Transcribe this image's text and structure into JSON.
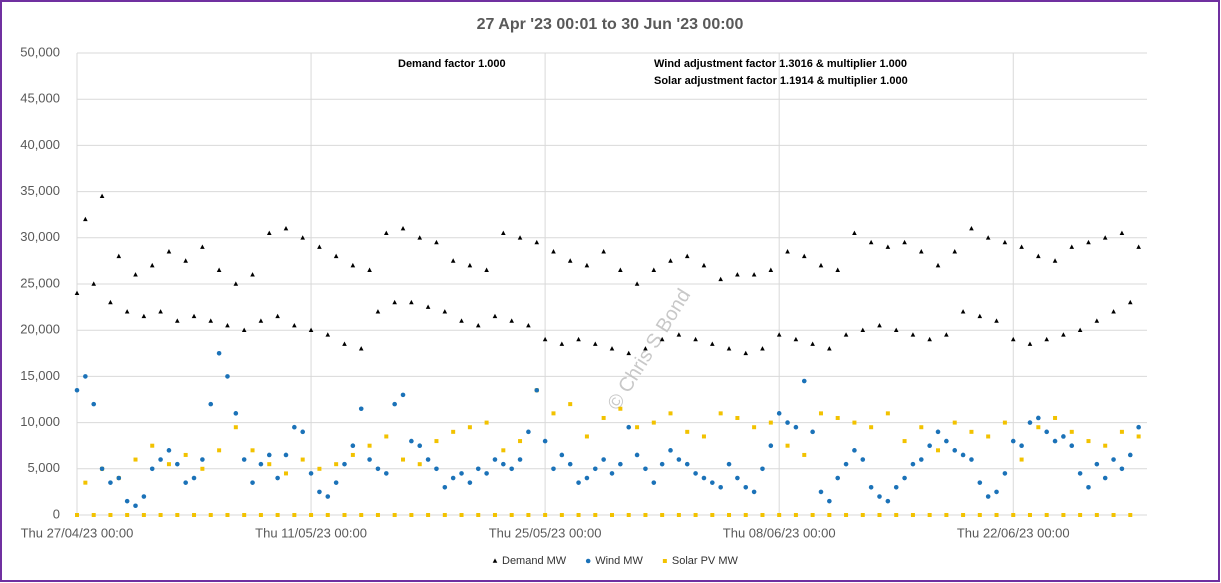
{
  "chart_data": {
    "type": "scatter",
    "title": "27 Apr '23 00:01 to 30 Jun '23 00:00",
    "annotations": [
      "Demand factor 1.000",
      "Wind adjustment factor 1.3016 & multiplier 1.000",
      "Solar adjustment factor 1.1914 & multiplier 1.000",
      "© Chris S Bond"
    ],
    "xlim": [
      0,
      64
    ],
    "xticks": [
      {
        "value": 0,
        "label": "Thu 27/04/23 00:00"
      },
      {
        "value": 14,
        "label": "Thu 11/05/23 00:00"
      },
      {
        "value": 28,
        "label": "Thu 25/05/23 00:00"
      },
      {
        "value": 42,
        "label": "Thu 08/06/23 00:00"
      },
      {
        "value": 56,
        "label": "Thu 22/06/23 00:00"
      }
    ],
    "ylim": [
      0,
      50000
    ],
    "yticks": [
      0,
      {
        "value": 5000,
        "label": "5,000"
      },
      {
        "value": 10000,
        "label": "10,000"
      },
      {
        "value": 15000,
        "label": "15,000"
      },
      {
        "value": 20000,
        "label": "20,000"
      },
      {
        "value": 25000,
        "label": "25,000"
      },
      {
        "value": 30000,
        "label": "30,000"
      },
      {
        "value": 35000,
        "label": "35,000"
      },
      {
        "value": 40000,
        "label": "40,000"
      },
      {
        "value": 45000,
        "label": "45,000"
      },
      {
        "value": 50000,
        "label": "50,000"
      }
    ],
    "grid": true,
    "legend": "bottom",
    "x": [
      0,
      0.5,
      1,
      1.5,
      2,
      2.5,
      3,
      3.5,
      4,
      4.5,
      5,
      5.5,
      6,
      6.5,
      7,
      7.5,
      8,
      8.5,
      9,
      9.5,
      10,
      10.5,
      11,
      11.5,
      12,
      12.5,
      13,
      13.5,
      14,
      14.5,
      15,
      15.5,
      16,
      16.5,
      17,
      17.5,
      18,
      18.5,
      19,
      19.5,
      20,
      20.5,
      21,
      21.5,
      22,
      22.5,
      23,
      23.5,
      24,
      24.5,
      25,
      25.5,
      26,
      26.5,
      27,
      27.5,
      28,
      28.5,
      29,
      29.5,
      30,
      30.5,
      31,
      31.5,
      32,
      32.5,
      33,
      33.5,
      34,
      34.5,
      35,
      35.5,
      36,
      36.5,
      37,
      37.5,
      38,
      38.5,
      39,
      39.5,
      40,
      40.5,
      41,
      41.5,
      42,
      42.5,
      43,
      43.5,
      44,
      44.5,
      45,
      45.5,
      46,
      46.5,
      47,
      47.5,
      48,
      48.5,
      49,
      49.5,
      50,
      50.5,
      51,
      51.5,
      52,
      52.5,
      53,
      53.5,
      54,
      54.5,
      55,
      55.5,
      56,
      56.5,
      57,
      57.5,
      58,
      58.5,
      59,
      59.5,
      60,
      60.5,
      61,
      61.5,
      62,
      62.5,
      63,
      63.5
    ],
    "series": [
      {
        "name": "Demand MW",
        "color": "#000000",
        "marker": "triangle",
        "values": [
          24000,
          32000,
          25000,
          34500,
          23000,
          28000,
          22000,
          26000,
          21500,
          27000,
          22000,
          28500,
          21000,
          27500,
          21500,
          29000,
          21000,
          26500,
          20500,
          25000,
          20000,
          26000,
          21000,
          30500,
          21500,
          31000,
          20500,
          30000,
          20000,
          29000,
          19500,
          28000,
          18500,
          27000,
          18000,
          26500,
          22000,
          30500,
          23000,
          31000,
          23000,
          30000,
          22500,
          29500,
          22000,
          27500,
          21000,
          27000,
          20500,
          26500,
          21500,
          30500,
          21000,
          30000,
          20500,
          29500,
          19000,
          28500,
          18500,
          27500,
          19000,
          27000,
          18500,
          28500,
          18000,
          26500,
          17500,
          25000,
          18000,
          26500,
          19000,
          27500,
          19500,
          28000,
          19000,
          27000,
          18500,
          25500,
          18000,
          26000,
          17500,
          26000,
          18000,
          26500,
          19500,
          28500,
          19000,
          28000,
          18500,
          27000,
          18000,
          26500,
          19500,
          30500,
          20000,
          29500,
          20500,
          29000,
          20000,
          29500,
          19500,
          28500,
          19000,
          27000,
          19500,
          28500,
          22000,
          31000,
          21500,
          30000,
          21000,
          29500,
          19000,
          29000,
          18500,
          28000,
          19000,
          27500,
          19500,
          29000,
          20000,
          29500,
          21000,
          30000,
          22000,
          30500,
          23000,
          29000
        ]
      },
      {
        "name": "Wind MW",
        "color": "#1b72b8",
        "marker": "circle",
        "values": [
          13500,
          15000,
          12000,
          5000,
          3500,
          4000,
          1500,
          1000,
          2000,
          5000,
          6000,
          7000,
          5500,
          3500,
          4000,
          6000,
          12000,
          17500,
          15000,
          11000,
          6000,
          3500,
          5500,
          6500,
          4000,
          6500,
          9500,
          9000,
          4500,
          2500,
          2000,
          3500,
          5500,
          7500,
          11500,
          6000,
          5000,
          4500,
          12000,
          13000,
          8000,
          7500,
          6000,
          5000,
          3000,
          4000,
          4500,
          3500,
          5000,
          4500,
          6000,
          5500,
          5000,
          6000,
          9000,
          13500,
          8000,
          5000,
          6500,
          5500,
          3500,
          4000,
          5000,
          6000,
          4500,
          5500,
          9500,
          6500,
          5000,
          3500,
          5500,
          7000,
          6000,
          5500,
          4500,
          4000,
          3500,
          3000,
          5500,
          4000,
          3000,
          2500,
          5000,
          7500,
          11000,
          10000,
          9500,
          14500,
          9000,
          2500,
          1500,
          4000,
          5500,
          7000,
          6000,
          3000,
          2000,
          1500,
          3000,
          4000,
          5500,
          6000,
          7500,
          9000,
          8000,
          7000,
          6500,
          6000,
          3500,
          2000,
          2500,
          4500,
          8000,
          7500,
          10000,
          10500,
          9000,
          8000,
          8500,
          7500,
          4500,
          3000,
          5500,
          4000,
          6000,
          5000,
          6500,
          9500
        ]
      },
      {
        "name": "Solar PV MW",
        "color": "#f2c200",
        "marker": "square",
        "values": [
          0,
          3500,
          0,
          5000,
          0,
          4000,
          0,
          6000,
          0,
          7500,
          0,
          5500,
          0,
          6500,
          0,
          5000,
          0,
          7000,
          0,
          9500,
          0,
          7000,
          0,
          5500,
          0,
          4500,
          0,
          6000,
          0,
          5000,
          0,
          5500,
          0,
          6500,
          0,
          7500,
          0,
          8500,
          0,
          6000,
          0,
          5500,
          0,
          8000,
          0,
          9000,
          0,
          9500,
          0,
          10000,
          0,
          7000,
          0,
          8000,
          0,
          13500,
          0,
          11000,
          0,
          12000,
          0,
          8500,
          0,
          10500,
          0,
          11500,
          0,
          9500,
          0,
          10000,
          0,
          11000,
          0,
          9000,
          0,
          8500,
          0,
          11000,
          0,
          10500,
          0,
          9500,
          0,
          10000,
          0,
          7500,
          0,
          6500,
          0,
          11000,
          0,
          10500,
          0,
          10000,
          0,
          9500,
          0,
          11000,
          0,
          8000,
          0,
          9500,
          0,
          7000,
          0,
          10000,
          0,
          9000,
          0,
          8500,
          0,
          10000,
          0,
          6000,
          0,
          9500,
          0,
          10500,
          0,
          9000,
          0,
          8000,
          0,
          7500,
          0,
          9000,
          0,
          8500
        ]
      }
    ]
  }
}
